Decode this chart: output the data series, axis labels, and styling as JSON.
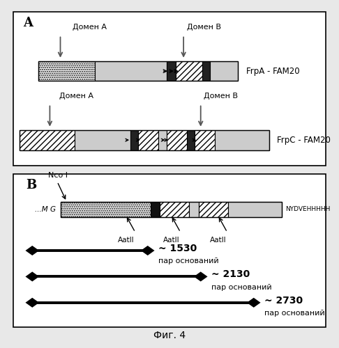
{
  "fig_caption": "Фиг. 4",
  "bg_color": "#e8e8e8",
  "panel_bg": "#ffffff",
  "panel_A": {
    "title": "A",
    "frpA_label": "FrpA - FAM20",
    "frpC_label": "FrpC - FAM20",
    "domain_A_label": "Домен A",
    "domain_B_label": "Домен B"
  },
  "panel_B": {
    "title": "B",
    "nco_label": "Nco I",
    "mg_label": "...M G",
    "nydve_label": "NYDVEHHHHH",
    "aatII_label": "AatII",
    "line1_label": "~ 1530",
    "line2_label": "~ 2130",
    "line3_label": "~ 2730",
    "par_osnov": "пар оснований"
  }
}
